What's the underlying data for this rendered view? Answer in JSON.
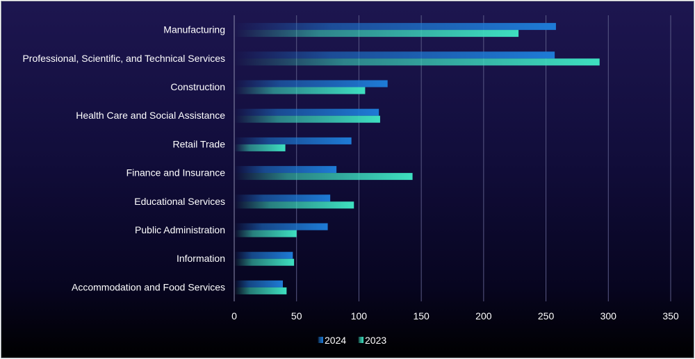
{
  "chart_data": {
    "type": "bar",
    "orientation": "horizontal",
    "categories": [
      "Manufacturing",
      "Professional, Scientific, and Technical Services",
      "Construction",
      "Health Care and Social Assistance",
      "Retail Trade",
      "Finance and Insurance",
      "Educational Services",
      "Public Administration",
      "Information",
      "Accommodation and Food Services"
    ],
    "series": [
      {
        "name": "2024",
        "values": [
          258,
          257,
          123,
          116,
          94,
          82,
          77,
          75,
          47,
          39
        ],
        "color": "#1e7bd6"
      },
      {
        "name": "2023",
        "values": [
          228,
          293,
          105,
          117,
          41,
          143,
          96,
          50,
          48,
          42
        ],
        "color": "#3ee0c0"
      }
    ],
    "xlim": [
      0,
      350
    ],
    "xticks": [
      "0",
      "50",
      "100",
      "150",
      "200",
      "250",
      "300",
      "350"
    ],
    "grid": true,
    "legend_position": "bottom"
  }
}
